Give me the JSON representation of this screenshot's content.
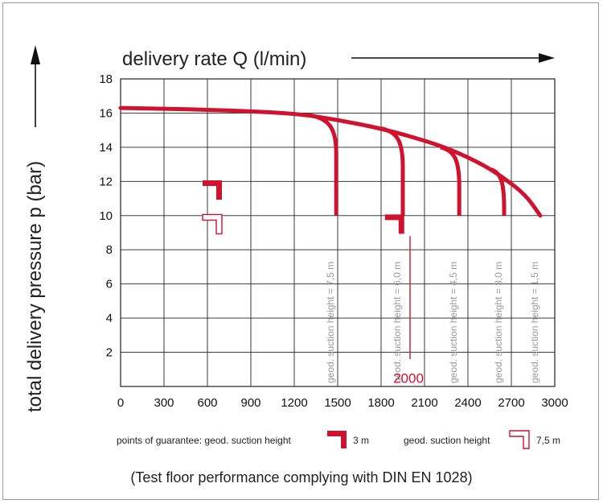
{
  "chart_data": {
    "type": "line",
    "xlabel": "delivery rate Q (l/min)",
    "ylabel": "total delivery pressure p (bar)",
    "xlim": [
      0,
      3000
    ],
    "ylim": [
      0,
      18
    ],
    "x_ticks": [
      0,
      300,
      600,
      900,
      1200,
      1500,
      1800,
      2100,
      2400,
      2700,
      3000
    ],
    "y_ticks": [
      2,
      4,
      6,
      8,
      10,
      12,
      14,
      16,
      18
    ],
    "grid": true,
    "main_curve": {
      "x": [
        0,
        600,
        1200,
        1500,
        1800,
        2100,
        2300,
        2500,
        2650,
        2800,
        2900
      ],
      "y": [
        16.3,
        16.2,
        16.0,
        15.6,
        15.1,
        14.4,
        13.8,
        13.0,
        12.2,
        11.2,
        10.0
      ]
    },
    "series": [
      {
        "name": "geod. suction height = 7,5 m",
        "branch_x": 1290,
        "branch_y": 15.9,
        "end_x": 1490,
        "end_y": 10
      },
      {
        "name": "geod. suction height = 6,0 m",
        "branch_x": 1800,
        "branch_y": 15.1,
        "end_x": 1950,
        "end_y": 10
      },
      {
        "name": "geod. suction height = 4,5 m",
        "branch_x": 2210,
        "branch_y": 14.0,
        "end_x": 2340,
        "end_y": 10
      },
      {
        "name": "geod. suction height = 3,0 m",
        "branch_x": 2560,
        "branch_y": 12.7,
        "end_x": 2650,
        "end_y": 10
      },
      {
        "name": "geod. suction height = 1,5 m",
        "branch_x": 2900,
        "branch_y": 10.0,
        "end_x": 2900,
        "end_y": 10
      }
    ],
    "annotations": [
      {
        "text": "2000",
        "x": 2000,
        "y": 0.6
      }
    ],
    "guarantee_markers": [
      {
        "type": "filled",
        "x": 700,
        "y": 11.5
      },
      {
        "type": "outline",
        "x": 700,
        "y": 9.5
      },
      {
        "type": "filled",
        "x": 1960,
        "y": 9.5
      }
    ],
    "legend": {
      "filled_label": "points of guarantee: geod. suction height",
      "filled_value": "3 m",
      "outline_label": "geod. suction height",
      "outline_value": "7,5 m"
    },
    "footnote": "(Test floor performance complying with DIN EN 1028)",
    "colors": {
      "curve": "#d1122f",
      "grid": "#222222",
      "label": "#9a9a9a"
    }
  }
}
